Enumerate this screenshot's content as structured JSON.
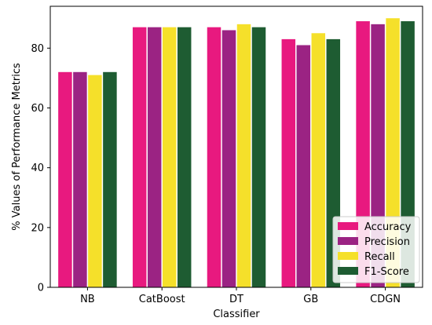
{
  "chart_data": {
    "type": "bar",
    "title": "",
    "xlabel": "Classifier",
    "ylabel": "% Values of Performance Metrics",
    "categories": [
      "NB",
      "CatBoost",
      "DT",
      "GB",
      "CDGN"
    ],
    "ylim": [
      0,
      94
    ],
    "yticks": [
      0,
      20,
      40,
      60,
      80
    ],
    "series": [
      {
        "name": "Accuracy",
        "color": "#e8197f",
        "values": [
          72,
          87,
          87,
          83,
          89
        ]
      },
      {
        "name": "Precision",
        "color": "#9b2383",
        "values": [
          72,
          87,
          86,
          81,
          88
        ]
      },
      {
        "name": "Recall",
        "color": "#f5e02a",
        "values": [
          71,
          87,
          88,
          85,
          90
        ]
      },
      {
        "name": "F1-Score",
        "color": "#1e5c32",
        "values": [
          72,
          87,
          87,
          83,
          89
        ]
      }
    ],
    "grid": false,
    "legend": "lower-right"
  }
}
